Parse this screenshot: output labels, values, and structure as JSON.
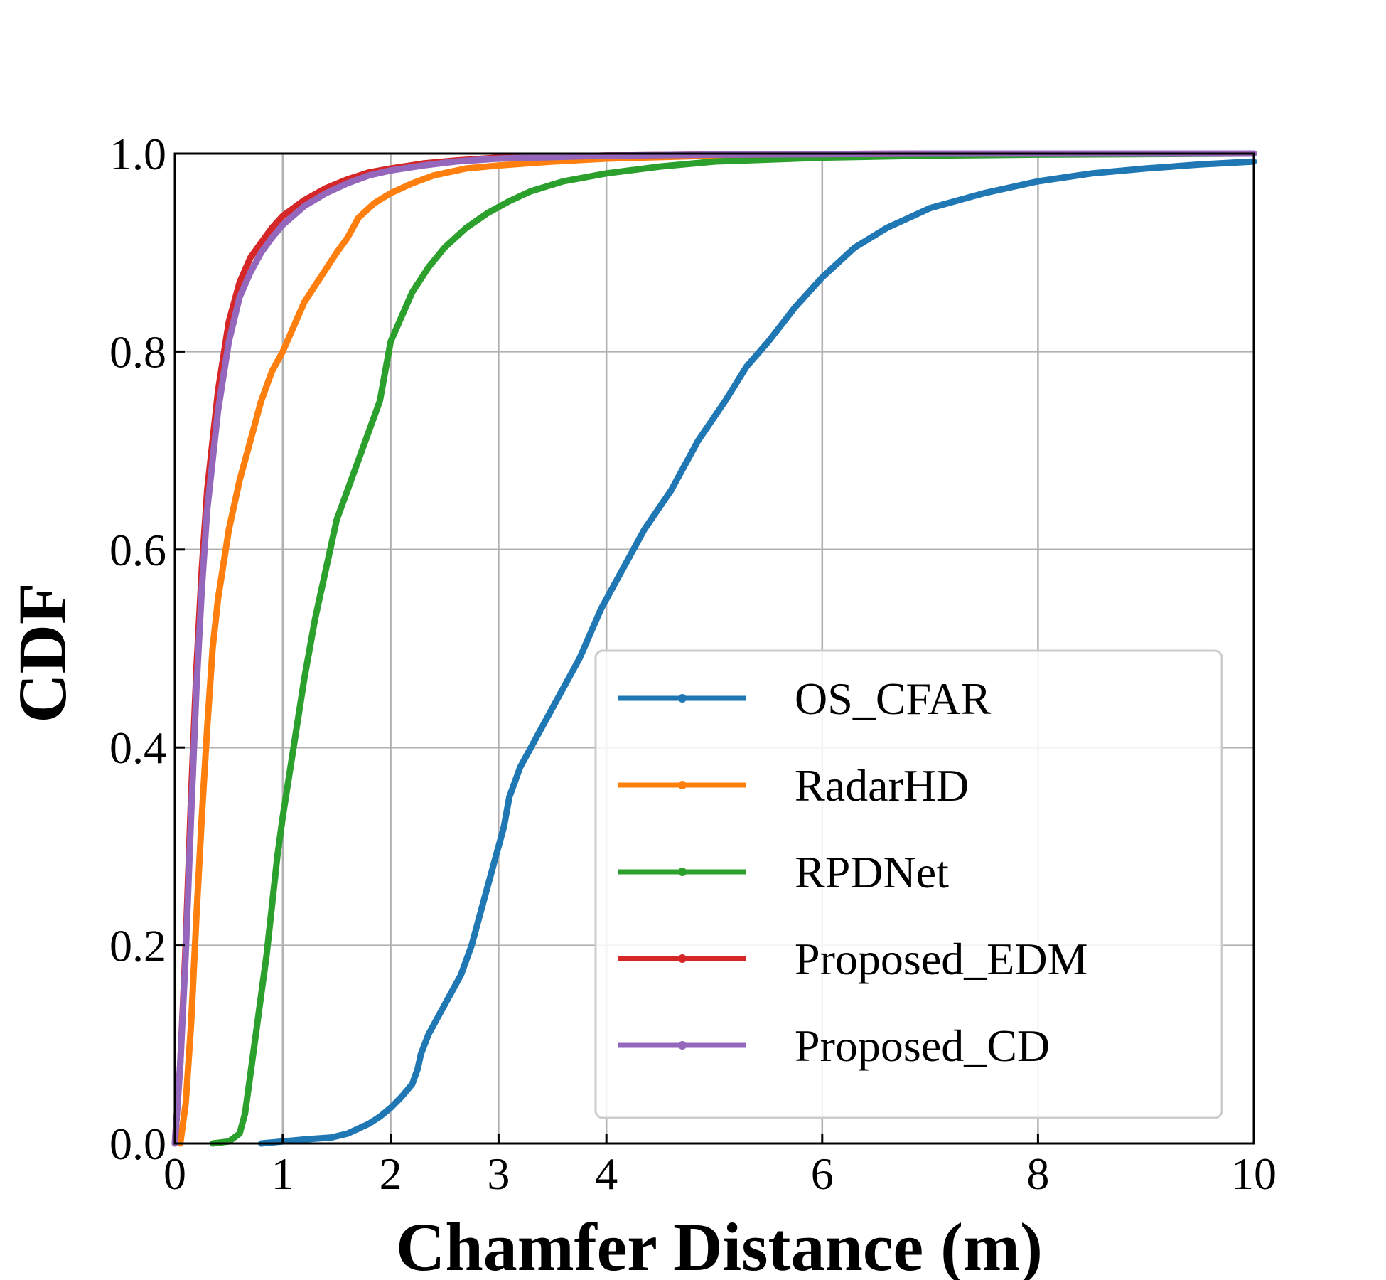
{
  "chart_data": {
    "type": "line",
    "title": "",
    "xlabel": "Chamfer Distance (m)",
    "ylabel": "CDF",
    "xlim": [
      0,
      10
    ],
    "ylim": [
      0,
      1.0
    ],
    "grid": true,
    "legend_position": "lower-right",
    "x_ticks": [
      {
        "value": 0,
        "label": "0"
      },
      {
        "value": 1,
        "label": "1"
      },
      {
        "value": 2,
        "label": "2"
      },
      {
        "value": 3,
        "label": "3"
      },
      {
        "value": 4,
        "label": "4"
      },
      {
        "value": 6,
        "label": "6"
      },
      {
        "value": 8,
        "label": "8"
      },
      {
        "value": 10,
        "label": "10"
      }
    ],
    "y_ticks": [
      {
        "value": 0.0,
        "label": "0.0"
      },
      {
        "value": 0.2,
        "label": "0.2"
      },
      {
        "value": 0.4,
        "label": "0.4"
      },
      {
        "value": 0.6,
        "label": "0.6"
      },
      {
        "value": 0.8,
        "label": "0.8"
      },
      {
        "value": 1.0,
        "label": "1.0"
      }
    ],
    "series": [
      {
        "name": "OS_CFAR",
        "color": "#1f77b4",
        "points": [
          [
            0.8,
            0
          ],
          [
            1.0,
            0.002
          ],
          [
            1.2,
            0.004
          ],
          [
            1.45,
            0.006
          ],
          [
            1.6,
            0.01
          ],
          [
            1.8,
            0.02
          ],
          [
            1.9,
            0.027
          ],
          [
            2.0,
            0.036
          ],
          [
            2.1,
            0.047
          ],
          [
            2.2,
            0.06
          ],
          [
            2.25,
            0.075
          ],
          [
            2.28,
            0.09
          ],
          [
            2.35,
            0.11
          ],
          [
            2.45,
            0.13
          ],
          [
            2.55,
            0.15
          ],
          [
            2.65,
            0.17
          ],
          [
            2.75,
            0.2
          ],
          [
            2.85,
            0.24
          ],
          [
            2.95,
            0.28
          ],
          [
            3.05,
            0.32
          ],
          [
            3.1,
            0.35
          ],
          [
            3.2,
            0.38
          ],
          [
            3.35,
            0.41
          ],
          [
            3.55,
            0.45
          ],
          [
            3.75,
            0.49
          ],
          [
            3.95,
            0.54
          ],
          [
            4.15,
            0.58
          ],
          [
            4.35,
            0.62
          ],
          [
            4.6,
            0.66
          ],
          [
            4.85,
            0.71
          ],
          [
            5.1,
            0.75
          ],
          [
            5.3,
            0.785
          ],
          [
            5.5,
            0.81
          ],
          [
            5.75,
            0.845
          ],
          [
            6.0,
            0.875
          ],
          [
            6.3,
            0.905
          ],
          [
            6.6,
            0.925
          ],
          [
            7.0,
            0.945
          ],
          [
            7.5,
            0.96
          ],
          [
            8.0,
            0.972
          ],
          [
            8.5,
            0.98
          ],
          [
            9.0,
            0.985
          ],
          [
            9.5,
            0.989
          ],
          [
            10.0,
            0.992
          ]
        ]
      },
      {
        "name": "RadarHD",
        "color": "#ff7f0e",
        "points": [
          [
            0.05,
            0
          ],
          [
            0.1,
            0.04
          ],
          [
            0.15,
            0.12
          ],
          [
            0.2,
            0.23
          ],
          [
            0.25,
            0.33
          ],
          [
            0.3,
            0.42
          ],
          [
            0.35,
            0.5
          ],
          [
            0.4,
            0.55
          ],
          [
            0.5,
            0.62
          ],
          [
            0.6,
            0.67
          ],
          [
            0.7,
            0.71
          ],
          [
            0.8,
            0.75
          ],
          [
            0.9,
            0.78
          ],
          [
            1.0,
            0.8
          ],
          [
            1.1,
            0.825
          ],
          [
            1.2,
            0.85
          ],
          [
            1.35,
            0.875
          ],
          [
            1.5,
            0.9
          ],
          [
            1.6,
            0.915
          ],
          [
            1.7,
            0.935
          ],
          [
            1.85,
            0.95
          ],
          [
            2.0,
            0.96
          ],
          [
            2.2,
            0.97
          ],
          [
            2.4,
            0.978
          ],
          [
            2.7,
            0.985
          ],
          [
            3.0,
            0.988
          ],
          [
            3.5,
            0.992
          ],
          [
            4.0,
            0.995
          ],
          [
            5.0,
            0.998
          ],
          [
            6.0,
            0.999
          ],
          [
            8.0,
            1.0
          ],
          [
            10.0,
            1.0
          ]
        ]
      },
      {
        "name": "RPDNet",
        "color": "#2ca02c",
        "points": [
          [
            0.35,
            0
          ],
          [
            0.5,
            0.002
          ],
          [
            0.6,
            0.01
          ],
          [
            0.65,
            0.03
          ],
          [
            0.7,
            0.07
          ],
          [
            0.75,
            0.11
          ],
          [
            0.8,
            0.15
          ],
          [
            0.85,
            0.19
          ],
          [
            0.9,
            0.24
          ],
          [
            0.95,
            0.29
          ],
          [
            1.0,
            0.33
          ],
          [
            1.1,
            0.4
          ],
          [
            1.2,
            0.47
          ],
          [
            1.3,
            0.53
          ],
          [
            1.4,
            0.58
          ],
          [
            1.5,
            0.63
          ],
          [
            1.6,
            0.66
          ],
          [
            1.7,
            0.69
          ],
          [
            1.8,
            0.72
          ],
          [
            1.9,
            0.75
          ],
          [
            1.95,
            0.78
          ],
          [
            2.0,
            0.81
          ],
          [
            2.1,
            0.835
          ],
          [
            2.2,
            0.86
          ],
          [
            2.35,
            0.885
          ],
          [
            2.5,
            0.905
          ],
          [
            2.7,
            0.925
          ],
          [
            2.9,
            0.94
          ],
          [
            3.1,
            0.952
          ],
          [
            3.3,
            0.962
          ],
          [
            3.6,
            0.972
          ],
          [
            4.0,
            0.98
          ],
          [
            4.5,
            0.987
          ],
          [
            5.0,
            0.992
          ],
          [
            6.0,
            0.996
          ],
          [
            7.0,
            0.998
          ],
          [
            8.0,
            0.999
          ],
          [
            10.0,
            1.0
          ]
        ]
      },
      {
        "name": "Proposed_EDM",
        "color": "#d62728",
        "points": [
          [
            0.0,
            0
          ],
          [
            0.05,
            0.08
          ],
          [
            0.1,
            0.2
          ],
          [
            0.15,
            0.35
          ],
          [
            0.2,
            0.48
          ],
          [
            0.25,
            0.58
          ],
          [
            0.3,
            0.66
          ],
          [
            0.4,
            0.76
          ],
          [
            0.5,
            0.83
          ],
          [
            0.6,
            0.87
          ],
          [
            0.7,
            0.895
          ],
          [
            0.8,
            0.91
          ],
          [
            0.9,
            0.925
          ],
          [
            1.0,
            0.937
          ],
          [
            1.2,
            0.953
          ],
          [
            1.4,
            0.965
          ],
          [
            1.6,
            0.974
          ],
          [
            1.8,
            0.981
          ],
          [
            2.0,
            0.985
          ],
          [
            2.3,
            0.99
          ],
          [
            2.6,
            0.993
          ],
          [
            3.0,
            0.996
          ],
          [
            4.0,
            0.998
          ],
          [
            5.0,
            0.999
          ],
          [
            7.0,
            1.0
          ],
          [
            10.0,
            1.0
          ]
        ]
      },
      {
        "name": "Proposed_CD",
        "color": "#9467bd",
        "points": [
          [
            0.0,
            0
          ],
          [
            0.05,
            0.08
          ],
          [
            0.1,
            0.19
          ],
          [
            0.15,
            0.33
          ],
          [
            0.2,
            0.46
          ],
          [
            0.25,
            0.56
          ],
          [
            0.3,
            0.64
          ],
          [
            0.4,
            0.74
          ],
          [
            0.5,
            0.81
          ],
          [
            0.6,
            0.855
          ],
          [
            0.7,
            0.88
          ],
          [
            0.8,
            0.9
          ],
          [
            0.9,
            0.915
          ],
          [
            1.0,
            0.928
          ],
          [
            1.2,
            0.947
          ],
          [
            1.4,
            0.96
          ],
          [
            1.6,
            0.97
          ],
          [
            1.8,
            0.978
          ],
          [
            2.0,
            0.983
          ],
          [
            2.3,
            0.988
          ],
          [
            2.6,
            0.992
          ],
          [
            3.0,
            0.995
          ],
          [
            4.0,
            0.998
          ],
          [
            5.0,
            0.999
          ],
          [
            7.0,
            1.0
          ],
          [
            10.0,
            1.0
          ]
        ]
      }
    ]
  }
}
